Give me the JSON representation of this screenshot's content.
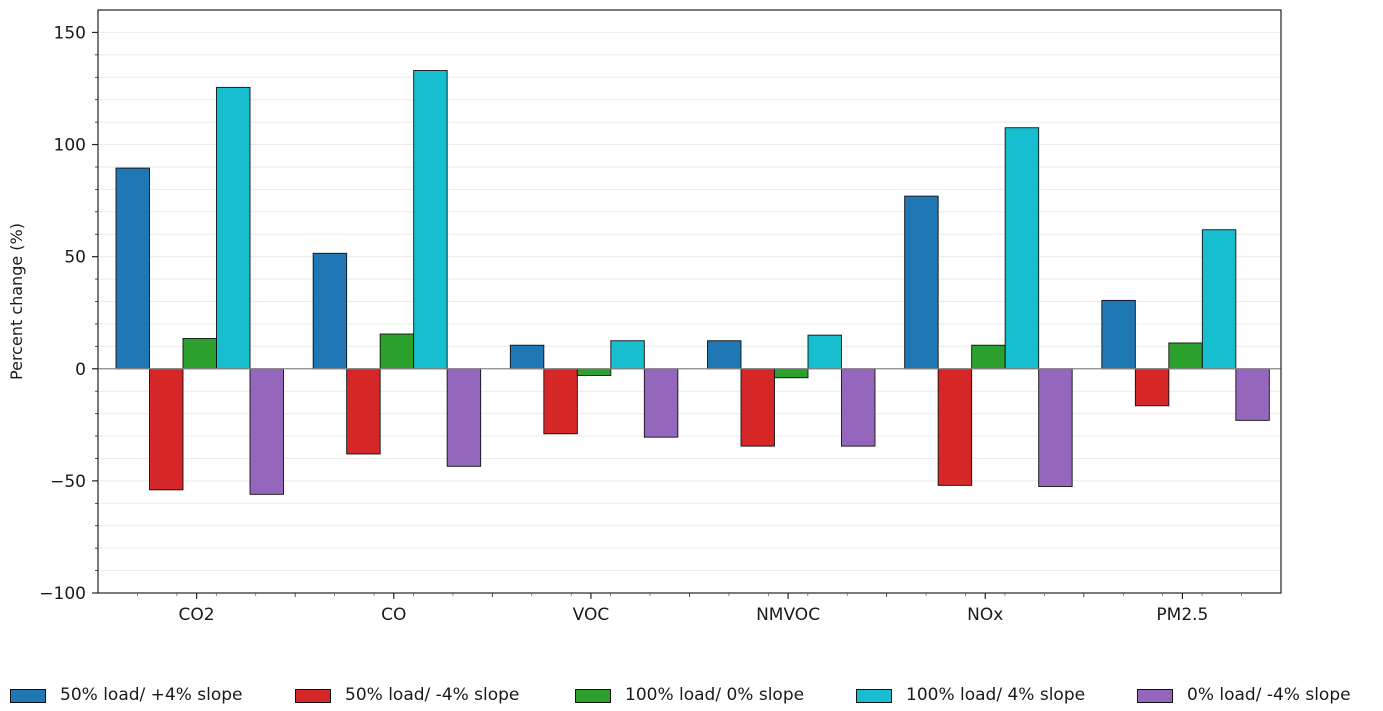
{
  "chart_data": {
    "type": "bar",
    "title": "",
    "xlabel": "",
    "ylabel": "Percent change (%)",
    "ylim": [
      -100,
      160
    ],
    "yticks": [
      150,
      100,
      50,
      0,
      -50,
      -100
    ],
    "ytick_labels": [
      "150",
      "100",
      "50",
      "0",
      "−50",
      "−100"
    ],
    "grid": "horizontal minor, light",
    "legend_position": "bottom",
    "categories": [
      "CO2",
      "CO",
      "VOC",
      "NMVOC",
      "NOx",
      "PM2.5"
    ],
    "series": [
      {
        "name": "50% load/ +4% slope",
        "color": "#1f77b4",
        "values": [
          89.5,
          51.5,
          10.5,
          12.5,
          77,
          30.5
        ]
      },
      {
        "name": "50% load/ -4% slope",
        "color": "#d62728",
        "values": [
          -54,
          -38,
          -29,
          -34.5,
          -52,
          -16.5
        ]
      },
      {
        "name": "100% load/ 0% slope",
        "color": "#2ca02c",
        "values": [
          13.5,
          15.5,
          -3,
          -4,
          10.5,
          11.5
        ]
      },
      {
        "name": "100% load/ 4% slope",
        "color": "#17becf",
        "values": [
          125.5,
          133,
          12.5,
          15,
          107.5,
          62
        ]
      },
      {
        "name": "0% load/ -4% slope",
        "color": "#9467bd",
        "values": [
          -56,
          -43.5,
          -30.5,
          -34.5,
          -52.5,
          -23
        ]
      }
    ]
  }
}
